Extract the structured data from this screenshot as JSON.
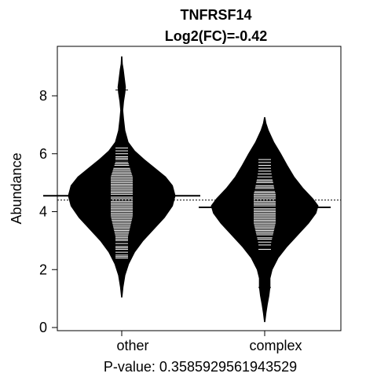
{
  "chart_data": {
    "type": "beanplot",
    "title": "TNFRSF14",
    "subtitle": "Log2(FC)=-0.42",
    "xlabel": "P-value: 0.3585929561943529",
    "ylabel": "Abundance",
    "ylim": [
      -0.15,
      9.6
    ],
    "yticks": [
      0,
      2,
      4,
      6,
      8
    ],
    "overall_mean": 4.4,
    "categories": [
      "other",
      "complex"
    ],
    "groups": [
      {
        "name": "other",
        "mean": 4.55,
        "range": [
          1.05,
          9.35
        ],
        "density": [
          [
            1.05,
            0.005
          ],
          [
            1.4,
            0.025
          ],
          [
            1.8,
            0.06
          ],
          [
            2.2,
            0.13
          ],
          [
            2.6,
            0.24
          ],
          [
            3.0,
            0.4
          ],
          [
            3.4,
            0.6
          ],
          [
            3.8,
            0.8
          ],
          [
            4.2,
            0.95
          ],
          [
            4.55,
            1.0
          ],
          [
            4.9,
            0.95
          ],
          [
            5.2,
            0.82
          ],
          [
            5.5,
            0.62
          ],
          [
            5.8,
            0.42
          ],
          [
            6.1,
            0.24
          ],
          [
            6.4,
            0.12
          ],
          [
            6.8,
            0.06
          ],
          [
            7.2,
            0.035
          ],
          [
            7.5,
            0.02
          ],
          [
            7.8,
            0.035
          ],
          [
            8.1,
            0.06
          ],
          [
            8.3,
            0.07
          ],
          [
            8.6,
            0.05
          ],
          [
            8.9,
            0.03
          ],
          [
            9.1,
            0.012
          ],
          [
            9.35,
            0.005
          ]
        ],
        "observations": [
          2.1,
          2.2,
          2.3,
          2.4,
          2.45,
          2.5,
          2.6,
          2.7,
          2.75,
          2.8,
          2.9,
          3.0,
          3.05,
          3.1,
          3.15,
          3.2,
          3.25,
          3.3,
          3.35,
          3.4,
          3.45,
          3.5,
          3.55,
          3.6,
          3.65,
          3.7,
          3.75,
          3.8,
          3.85,
          3.9,
          3.95,
          4.0,
          4.05,
          4.1,
          4.15,
          4.2,
          4.25,
          4.3,
          4.35,
          4.4,
          4.45,
          4.5,
          4.55,
          4.6,
          4.65,
          4.7,
          4.75,
          4.8,
          4.85,
          4.9,
          4.95,
          5.0,
          5.05,
          5.1,
          5.15,
          5.2,
          5.25,
          5.3,
          5.35,
          5.4,
          5.45,
          5.5,
          5.6,
          5.65,
          5.7,
          5.8,
          5.85,
          5.9,
          6.0,
          6.1,
          6.2,
          8.2
        ]
      },
      {
        "name": "complex",
        "mean": 4.15,
        "range": [
          0.2,
          7.25
        ],
        "density": [
          [
            0.2,
            0.005
          ],
          [
            0.5,
            0.025
          ],
          [
            0.8,
            0.05
          ],
          [
            1.1,
            0.08
          ],
          [
            1.4,
            0.1
          ],
          [
            1.7,
            0.1
          ],
          [
            2.0,
            0.14
          ],
          [
            2.4,
            0.25
          ],
          [
            2.8,
            0.42
          ],
          [
            3.2,
            0.62
          ],
          [
            3.6,
            0.82
          ],
          [
            3.95,
            0.96
          ],
          [
            4.2,
            1.0
          ],
          [
            4.45,
            0.9
          ],
          [
            4.8,
            0.72
          ],
          [
            5.2,
            0.55
          ],
          [
            5.6,
            0.42
          ],
          [
            6.0,
            0.3
          ],
          [
            6.4,
            0.17
          ],
          [
            6.8,
            0.07
          ],
          [
            7.05,
            0.025
          ],
          [
            7.25,
            0.005
          ]
        ],
        "observations": [
          1.38,
          2.7,
          2.85,
          2.95,
          3.05,
          3.1,
          3.2,
          3.25,
          3.3,
          3.35,
          3.4,
          3.45,
          3.5,
          3.55,
          3.6,
          3.65,
          3.7,
          3.75,
          3.8,
          3.85,
          3.9,
          3.95,
          4.0,
          4.05,
          4.1,
          4.15,
          4.2,
          4.25,
          4.3,
          4.35,
          4.4,
          4.45,
          4.5,
          4.55,
          4.6,
          4.65,
          4.7,
          4.8,
          4.85,
          4.9,
          5.0,
          5.05,
          5.1,
          5.2,
          5.3,
          5.4,
          5.5,
          5.6,
          5.7,
          5.8
        ]
      }
    ]
  }
}
